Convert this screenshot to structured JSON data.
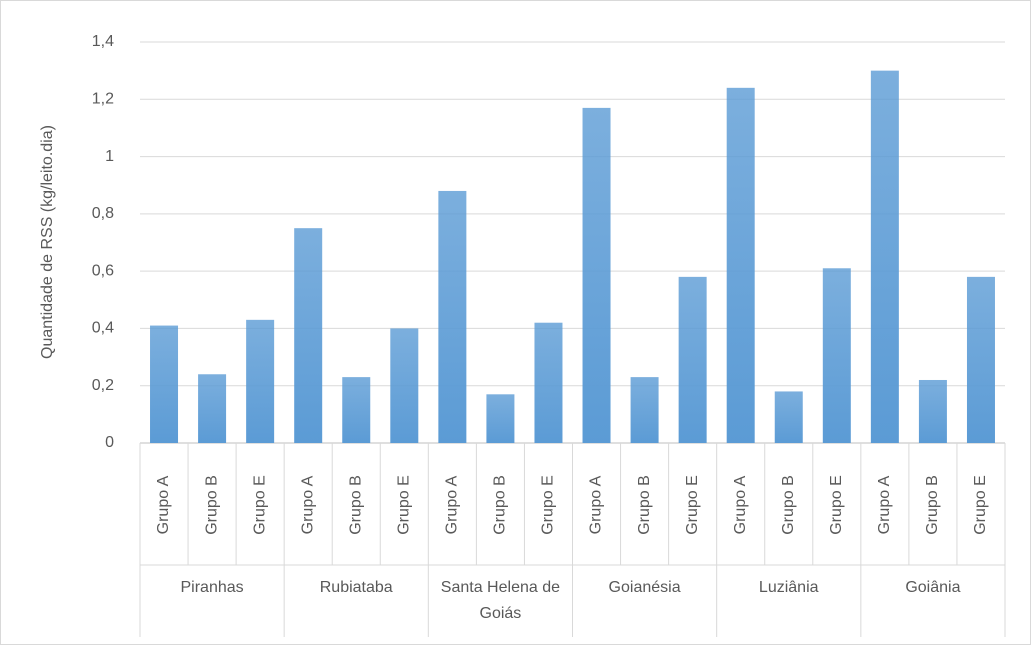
{
  "chart_data": {
    "type": "bar",
    "y_label": "Quantidade de RSS (kg/leito.dia)",
    "category_groups": [
      "Piranhas",
      "Rubiataba",
      "Santa Helena de Goiás",
      "Goianésia",
      "Luziânia",
      "Goiânia"
    ],
    "categories": [
      "Grupo A",
      "Grupo B",
      "Grupo E",
      "Grupo A",
      "Grupo B",
      "Grupo E",
      "Grupo A",
      "Grupo B",
      "Grupo E",
      "Grupo A",
      "Grupo B",
      "Grupo E",
      "Grupo A",
      "Grupo B",
      "Grupo E",
      "Grupo A",
      "Grupo B",
      "Grupo E"
    ],
    "values": [
      0.41,
      0.24,
      0.43,
      0.75,
      0.23,
      0.4,
      0.88,
      0.17,
      0.42,
      1.17,
      0.23,
      0.58,
      1.24,
      0.18,
      0.61,
      1.3,
      0.22,
      0.58
    ],
    "color": "#5b9bd5",
    "ylim": [
      0,
      1.4
    ],
    "yticks": [
      0,
      {
        "value": 0.2,
        "label": "0,2"
      },
      {
        "value": 0.4,
        "label": "0,4"
      },
      {
        "value": 0.6,
        "label": "0,6"
      },
      {
        "value": 0.8,
        "label": "0,8"
      },
      1,
      {
        "value": 1.2,
        "label": "1,2"
      },
      {
        "value": 1.4,
        "label": "1,4"
      }
    ],
    "grid": true
  }
}
